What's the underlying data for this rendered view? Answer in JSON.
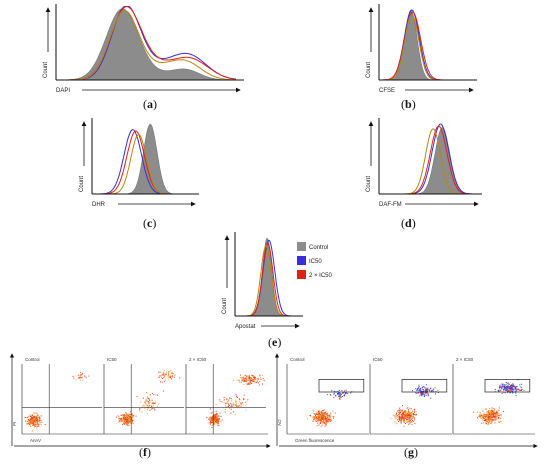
{
  "figure": {
    "panel_labels": [
      "a",
      "b",
      "c",
      "d",
      "e",
      "f",
      "g"
    ],
    "colors": {
      "control_fill": "#8c8c8c",
      "ic50": "#3a2fd6",
      "ic50x2": "#e0201b",
      "extra": "#b8860b",
      "dot_red": "#e8401c",
      "dot_orange": "#f0a030",
      "dot_blue": "#2a3fd8"
    }
  },
  "chart_data": [
    {
      "id": "a",
      "type": "area",
      "ylabel": "Count",
      "xlabel": "DAPI",
      "series": [
        {
          "name": "Control",
          "style": "fill",
          "peaks": [
            [
              0.36,
              0.09,
              1.0
            ],
            [
              0.72,
              0.08,
              0.13
            ],
            [
              0.55,
              0.12,
              0.07
            ]
          ]
        },
        {
          "name": "IC50",
          "style": "line",
          "peaks": [
            [
              0.38,
              0.08,
              1.0
            ],
            [
              0.74,
              0.1,
              0.32
            ],
            [
              0.55,
              0.12,
              0.18
            ]
          ]
        },
        {
          "name": "2 × IC50",
          "style": "line",
          "peaks": [
            [
              0.38,
              0.085,
              0.98
            ],
            [
              0.75,
              0.1,
              0.27
            ],
            [
              0.55,
              0.12,
              0.18
            ]
          ]
        },
        {
          "name": "",
          "style": "line",
          "peaks": [
            [
              0.37,
              0.08,
              0.94
            ],
            [
              0.72,
              0.09,
              0.22
            ],
            [
              0.55,
              0.12,
              0.16
            ]
          ]
        }
      ]
    },
    {
      "id": "b",
      "type": "area",
      "ylabel": "Count",
      "xlabel": "CFSE",
      "series": [
        {
          "name": "Control",
          "style": "fill",
          "peaks": [
            [
              0.34,
              0.07,
              1.0
            ]
          ]
        },
        {
          "name": "IC50",
          "style": "line",
          "peaks": [
            [
              0.35,
              0.085,
              1.0
            ]
          ]
        },
        {
          "name": "2 × IC50",
          "style": "line",
          "peaks": [
            [
              0.36,
              0.09,
              0.97
            ]
          ]
        },
        {
          "name": "",
          "style": "line",
          "peaks": [
            [
              0.35,
              0.08,
              0.93
            ]
          ]
        }
      ]
    },
    {
      "id": "c",
      "type": "area",
      "ylabel": "Count",
      "xlabel": "DHR",
      "series": [
        {
          "name": "Control",
          "style": "fill",
          "peaks": [
            [
              0.58,
              0.07,
              1.0
            ]
          ]
        },
        {
          "name": "IC50",
          "style": "line",
          "peaks": [
            [
              0.4,
              0.09,
              0.92
            ]
          ]
        },
        {
          "name": "2 × IC50",
          "style": "line",
          "peaks": [
            [
              0.43,
              0.09,
              0.9
            ]
          ]
        },
        {
          "name": "",
          "style": "line",
          "peaks": [
            [
              0.46,
              0.08,
              0.85
            ]
          ]
        }
      ]
    },
    {
      "id": "d",
      "type": "area",
      "ylabel": "Count",
      "xlabel": "DAF-FM",
      "series": [
        {
          "name": "Control",
          "style": "fill",
          "peaks": [
            [
              0.66,
              0.08,
              0.95
            ]
          ]
        },
        {
          "name": "IC50",
          "style": "line",
          "peaks": [
            [
              0.64,
              0.09,
              1.0
            ]
          ]
        },
        {
          "name": "2 × IC50",
          "style": "line",
          "peaks": [
            [
              0.62,
              0.09,
              0.97
            ]
          ]
        },
        {
          "name": "",
          "style": "line",
          "peaks": [
            [
              0.56,
              0.08,
              0.93
            ]
          ]
        }
      ]
    },
    {
      "id": "e",
      "type": "area",
      "ylabel": "Count",
      "xlabel": "Apostat",
      "legend": [
        "Control",
        "IC50",
        "2 × IC50"
      ],
      "legend_position": "right",
      "series": [
        {
          "name": "Control",
          "style": "fill",
          "peaks": [
            [
              0.52,
              0.08,
              1.0
            ]
          ]
        },
        {
          "name": "IC50",
          "style": "line",
          "peaks": [
            [
              0.55,
              0.1,
              0.97
            ]
          ]
        },
        {
          "name": "2 × IC50",
          "style": "line",
          "peaks": [
            [
              0.53,
              0.09,
              0.93
            ]
          ]
        },
        {
          "name": "",
          "style": "line",
          "peaks": [
            [
              0.5,
              0.09,
              0.9
            ]
          ]
        }
      ]
    },
    {
      "id": "f",
      "type": "scatter",
      "ylabel": "PI",
      "xlabel": "AnnV",
      "subplots": [
        "Control",
        "IC50",
        "2 × IC50"
      ],
      "quadrant_gate": {
        "x": 0.34,
        "y": 0.62
      },
      "clusters": [
        [
          {
            "cx": 0.14,
            "cy": 0.8,
            "sx": 0.07,
            "sy": 0.06,
            "n": 260
          },
          {
            "cx": 0.72,
            "cy": 0.18,
            "sx": 0.08,
            "sy": 0.05,
            "n": 25
          }
        ],
        [
          {
            "cx": 0.28,
            "cy": 0.78,
            "sx": 0.07,
            "sy": 0.07,
            "n": 240
          },
          {
            "cx": 0.55,
            "cy": 0.55,
            "sx": 0.1,
            "sy": 0.12,
            "n": 70
          },
          {
            "cx": 0.78,
            "cy": 0.16,
            "sx": 0.09,
            "sy": 0.06,
            "n": 60
          }
        ],
        [
          {
            "cx": 0.35,
            "cy": 0.78,
            "sx": 0.06,
            "sy": 0.06,
            "n": 220
          },
          {
            "cx": 0.6,
            "cy": 0.55,
            "sx": 0.13,
            "sy": 0.1,
            "n": 80
          },
          {
            "cx": 0.8,
            "cy": 0.22,
            "sx": 0.12,
            "sy": 0.05,
            "n": 130
          }
        ]
      ]
    },
    {
      "id": "g",
      "type": "scatter",
      "ylabel": "AO",
      "xlabel": "Green fluorescence",
      "subplots": [
        "Control",
        "IC50",
        "2 × IC50"
      ],
      "gate": {
        "x0": 0.4,
        "y0": 0.22,
        "x1": 0.96,
        "y1": 0.4
      },
      "clusters": [
        [
          {
            "cx": 0.44,
            "cy": 0.76,
            "sx": 0.1,
            "sy": 0.08,
            "n": 320,
            "color": "red"
          },
          {
            "cx": 0.66,
            "cy": 0.42,
            "sx": 0.09,
            "sy": 0.05,
            "n": 60,
            "color": "blue"
          }
        ],
        [
          {
            "cx": 0.44,
            "cy": 0.74,
            "sx": 0.1,
            "sy": 0.08,
            "n": 300,
            "color": "red"
          },
          {
            "cx": 0.68,
            "cy": 0.38,
            "sx": 0.11,
            "sy": 0.06,
            "n": 120,
            "color": "blue"
          }
        ],
        [
          {
            "cx": 0.46,
            "cy": 0.74,
            "sx": 0.1,
            "sy": 0.08,
            "n": 280,
            "color": "red"
          },
          {
            "cx": 0.7,
            "cy": 0.34,
            "sx": 0.12,
            "sy": 0.06,
            "n": 180,
            "color": "blue"
          }
        ]
      ]
    }
  ]
}
